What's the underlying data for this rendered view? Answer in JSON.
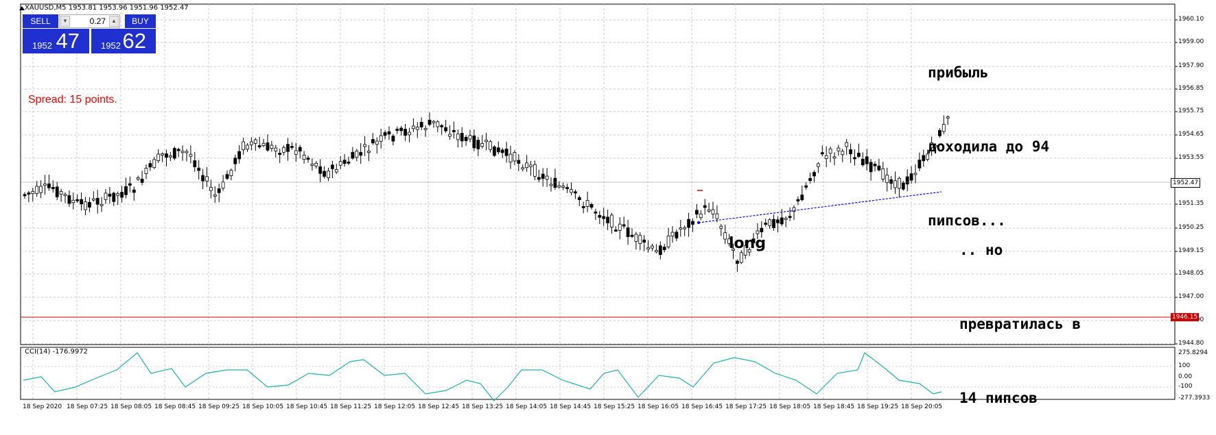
{
  "window": {
    "title": "XAUUSD,M5  1953.81 1953.96 1951.96 1952.47"
  },
  "trade_panel": {
    "sell_label": "SELL",
    "buy_label": "BUY",
    "lot_value": "0.27",
    "sell_price_prefix": "1952",
    "sell_price_main": "47",
    "buy_price_prefix": "1952",
    "buy_price_main": "62"
  },
  "spread_text": "Spread: 15 points.",
  "annotations": {
    "top_right": [
      "прибыль",
      "доходила до 94",
      "пипсов..."
    ],
    "bottom_right": [
      ".. но",
      "превратилась в",
      "14 пипсов"
    ],
    "long_label": "long"
  },
  "price_axis": {
    "ticks": [
      "1960.10",
      "1959.00",
      "1957.90",
      "1956.85",
      "1955.75",
      "1954.65",
      "1953.55",
      "1951.35",
      "1950.25",
      "1949.15",
      "1948.05",
      "1947.00",
      "1945.90",
      "1944.80"
    ],
    "current_price": "1952.47",
    "line_price": "1946.15"
  },
  "time_axis": {
    "ticks": [
      "18 Sep 2020",
      "18 Sep 07:25",
      "18 Sep 08:05",
      "18 Sep 08:45",
      "18 Sep 09:25",
      "18 Sep 10:05",
      "18 Sep 10:45",
      "18 Sep 11:25",
      "18 Sep 12:05",
      "18 Sep 12:45",
      "18 Sep 13:25",
      "18 Sep 14:05",
      "18 Sep 14:45",
      "18 Sep 15:25",
      "18 Sep 16:05",
      "18 Sep 16:45",
      "18 Sep 17:25",
      "18 Sep 18:05",
      "18 Sep 18:45",
      "18 Sep 19:25",
      "18 Sep 20:05"
    ]
  },
  "cci_panel": {
    "label": "CCI(14) -176.9972",
    "ticks": [
      "275.8294",
      "100",
      "0.00",
      "-100",
      "-277.3933"
    ]
  },
  "colors": {
    "accent": "#2030d0",
    "spread": "#ff0000",
    "cci_line": "#20b2aa",
    "entry_line": "#0000ff",
    "hline": "#d00000"
  }
}
